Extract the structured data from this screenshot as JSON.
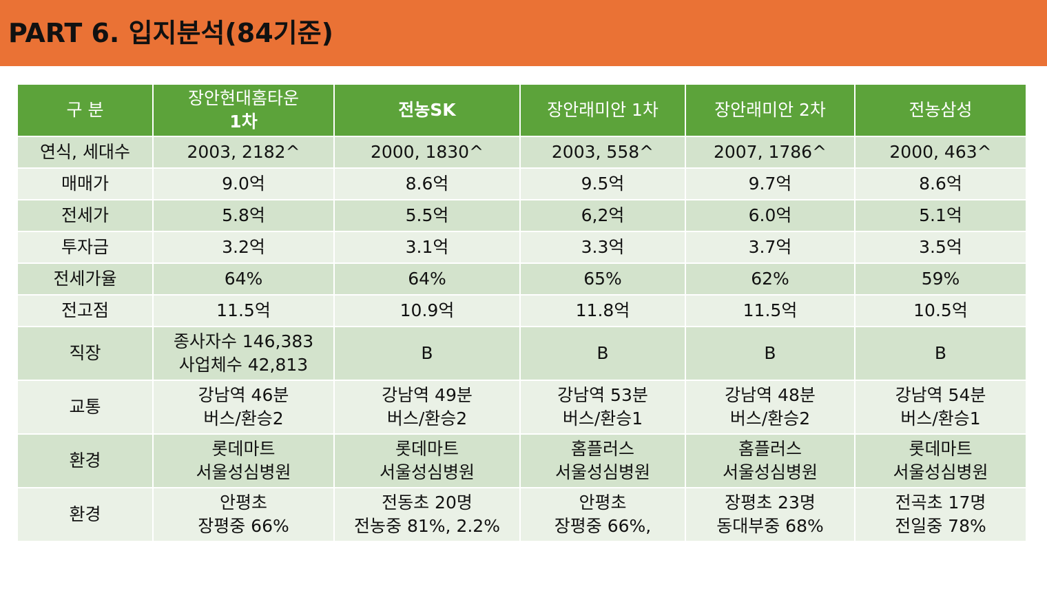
{
  "header": {
    "title": "PART 6. 입지분석(84기준)"
  },
  "table": {
    "columns": [
      {
        "line1": "구 분",
        "line2": ""
      },
      {
        "line1": "장안현대홈타운",
        "line2": "1차"
      },
      {
        "line1": "전농SK",
        "line2": ""
      },
      {
        "line1": "장안래미안 1차",
        "line2": ""
      },
      {
        "line1": "장안래미안 2차",
        "line2": ""
      },
      {
        "line1": "전농삼성",
        "line2": ""
      }
    ],
    "rows": [
      {
        "label": "연식, 세대수",
        "cells": [
          [
            "2003, 2182^"
          ],
          [
            "2000, 1830^"
          ],
          [
            "2003, 558^"
          ],
          [
            "2007, 1786^"
          ],
          [
            "2000, 463^"
          ]
        ]
      },
      {
        "label": "매매가",
        "cells": [
          [
            "9.0억"
          ],
          [
            "8.6억"
          ],
          [
            "9.5억"
          ],
          [
            "9.7억"
          ],
          [
            "8.6억"
          ]
        ]
      },
      {
        "label": "전세가",
        "cells": [
          [
            "5.8억"
          ],
          [
            "5.5억"
          ],
          [
            "6,2억"
          ],
          [
            "6.0억"
          ],
          [
            "5.1억"
          ]
        ]
      },
      {
        "label": "투자금",
        "cells": [
          [
            "3.2억"
          ],
          [
            "3.1억"
          ],
          [
            "3.3억"
          ],
          [
            "3.7억"
          ],
          [
            "3.5억"
          ]
        ]
      },
      {
        "label": "전세가율",
        "cells": [
          [
            "64%"
          ],
          [
            "64%"
          ],
          [
            "65%"
          ],
          [
            "62%"
          ],
          [
            "59%"
          ]
        ]
      },
      {
        "label": "전고점",
        "cells": [
          [
            "11.5억"
          ],
          [
            "10.9억"
          ],
          [
            "11.8억"
          ],
          [
            "11.5억"
          ],
          [
            "10.5억"
          ]
        ]
      },
      {
        "label": "직장",
        "cells": [
          [
            "종사자수 146,383",
            "사업체수 42,813"
          ],
          [
            "B"
          ],
          [
            "B"
          ],
          [
            "B"
          ],
          [
            "B"
          ]
        ]
      },
      {
        "label": "교통",
        "cells": [
          [
            "강남역 46분",
            "버스/환승2"
          ],
          [
            "강남역 49분",
            "버스/환승2"
          ],
          [
            "강남역 53분",
            "버스/환승1"
          ],
          [
            "강남역 48분",
            "버스/환승2"
          ],
          [
            "강남역 54분",
            "버스/환승1"
          ]
        ]
      },
      {
        "label": "환경",
        "cells": [
          [
            "롯데마트",
            "서울성심병원"
          ],
          [
            "롯데마트",
            "서울성심병원"
          ],
          [
            "홈플러스",
            "서울성심병원"
          ],
          [
            "홈플러스",
            "서울성심병원"
          ],
          [
            "롯데마트",
            "서울성심병원"
          ]
        ]
      },
      {
        "label": "환경",
        "cells": [
          [
            "안평초",
            "장평중 66%"
          ],
          [
            "전동초 20명",
            "전농중 81%, 2.2%"
          ],
          [
            "안평초",
            "장평중 66%,"
          ],
          [
            "장평초 23명",
            "동대부중 68%"
          ],
          [
            "전곡초 17명",
            "전일중 78%"
          ]
        ]
      }
    ]
  },
  "colors": {
    "title_bar": "#EA7235",
    "header_row": "#5CA33A",
    "row_dark": "#D3E3CC",
    "row_light": "#EAF1E6"
  }
}
